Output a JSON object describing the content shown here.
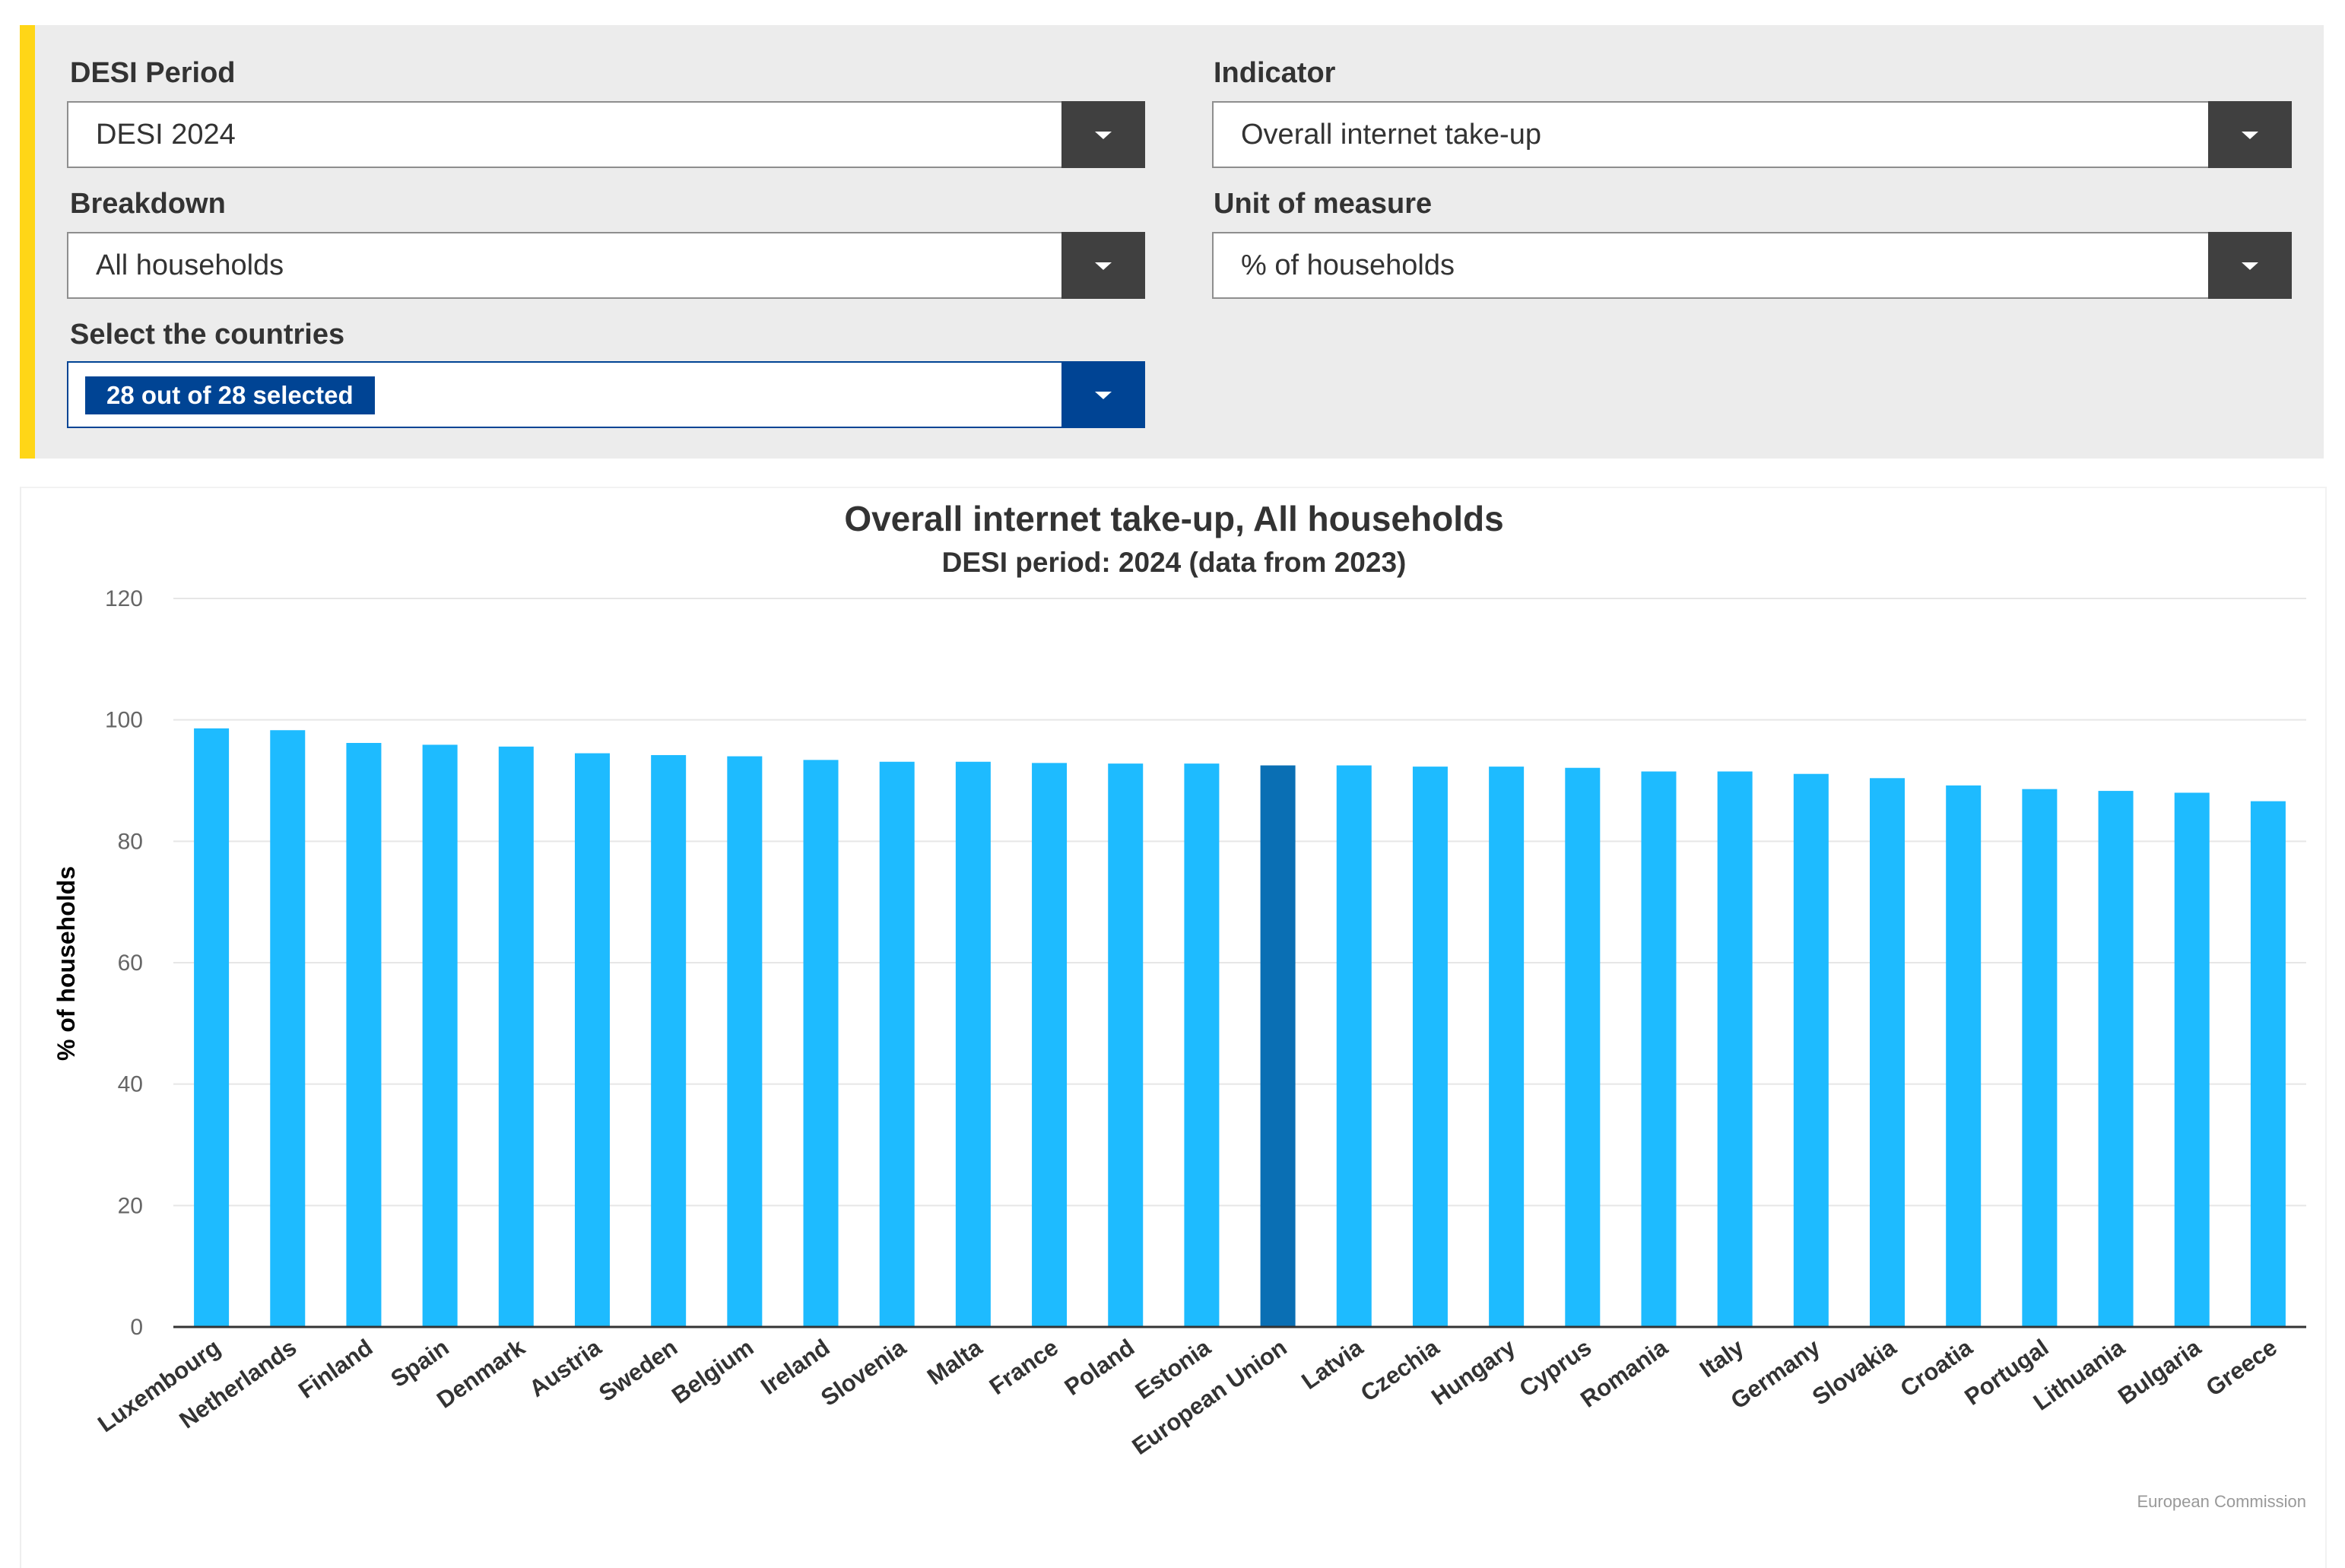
{
  "filters": {
    "desi_period": {
      "label": "DESI Period",
      "value": "DESI 2024"
    },
    "indicator": {
      "label": "Indicator",
      "value": "Overall internet take-up"
    },
    "breakdown": {
      "label": "Breakdown",
      "value": "All households"
    },
    "unit": {
      "label": "Unit of measure",
      "value": "% of households"
    },
    "countries": {
      "label": "Select the countries",
      "value": "28 out of 28 selected"
    }
  },
  "colors": {
    "bar": "#1ebbff",
    "highlight": "#0a6fb4",
    "accent": "#ffd617",
    "select_blue": "#004494"
  },
  "credit": "European Commission",
  "chart_data": {
    "type": "bar",
    "title": "Overall internet take-up, All households",
    "subtitle": "DESI period: 2024 (data from 2023)",
    "xlabel": "",
    "ylabel": "% of households",
    "ylim": [
      0,
      120
    ],
    "yticks": [
      0,
      20,
      40,
      60,
      80,
      100,
      120
    ],
    "grid": true,
    "highlight_category": "European Union",
    "categories": [
      "Luxembourg",
      "Netherlands",
      "Finland",
      "Spain",
      "Denmark",
      "Austria",
      "Sweden",
      "Belgium",
      "Ireland",
      "Slovenia",
      "Malta",
      "France",
      "Poland",
      "Estonia",
      "European Union",
      "Latvia",
      "Czechia",
      "Hungary",
      "Cyprus",
      "Romania",
      "Italy",
      "Germany",
      "Slovakia",
      "Croatia",
      "Portugal",
      "Lithuania",
      "Bulgaria",
      "Greece"
    ],
    "values": [
      98.6,
      98.3,
      96.2,
      95.9,
      95.6,
      94.5,
      94.2,
      94.0,
      93.4,
      93.1,
      93.1,
      92.9,
      92.8,
      92.8,
      92.5,
      92.5,
      92.3,
      92.3,
      92.1,
      91.5,
      91.5,
      91.1,
      90.4,
      89.2,
      88.6,
      88.3,
      88.0,
      86.6
    ]
  }
}
